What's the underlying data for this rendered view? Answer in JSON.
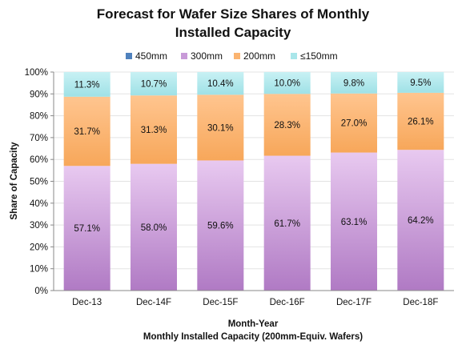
{
  "chart_data": {
    "type": "bar",
    "stacked": true,
    "title": [
      "Forecast for Wafer Size Shares of Monthly",
      "Installed Capacity"
    ],
    "xlabel": [
      "Month-Year",
      "Monthly Installed Capacity (200mm-Equiv. Wafers)"
    ],
    "ylabel": "Share of Capacity",
    "categories": [
      "Dec-13",
      "Dec-14F",
      "Dec-15F",
      "Dec-16F",
      "Dec-17F",
      "Dec-18F"
    ],
    "yticks": [
      "0%",
      "10%",
      "20%",
      "30%",
      "40%",
      "50%",
      "60%",
      "70%",
      "80%",
      "90%",
      "100%"
    ],
    "ylim": [
      0,
      100
    ],
    "legend_position": "top",
    "series": [
      {
        "name": "450mm",
        "color": "#4f81bd",
        "values": [
          0.0,
          0.0,
          0.0,
          0.0,
          0.0,
          0.2
        ],
        "labels": [
          "0.0%",
          "0.0%",
          "0.0%",
          "0.0%",
          "0.0%",
          "0.2%"
        ]
      },
      {
        "name": "300mm",
        "color": "#c89ad8",
        "values": [
          57.1,
          58.0,
          59.6,
          61.7,
          63.1,
          64.2
        ],
        "labels": [
          "57.1%",
          "58.0%",
          "59.6%",
          "61.7%",
          "63.1%",
          "64.2%"
        ]
      },
      {
        "name": "200mm",
        "color": "#fbb470",
        "values": [
          31.7,
          31.3,
          30.1,
          28.3,
          27.0,
          26.1
        ],
        "labels": [
          "31.7%",
          "31.3%",
          "30.1%",
          "28.3%",
          "27.0%",
          "26.1%"
        ]
      },
      {
        "name": "≤150mm",
        "color": "#a9e6ea",
        "values": [
          11.3,
          10.7,
          10.4,
          10.0,
          9.8,
          9.5
        ],
        "labels": [
          "11.3%",
          "10.7%",
          "10.4%",
          "10.0%",
          "9.8%",
          "9.5%"
        ]
      }
    ]
  }
}
